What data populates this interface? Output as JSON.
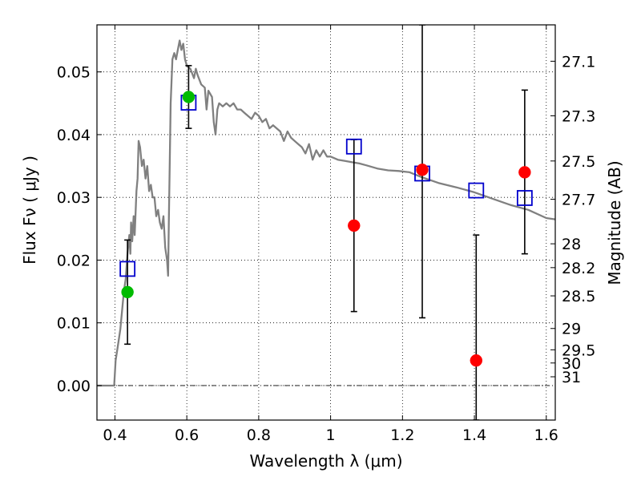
{
  "chart_data": {
    "type": "scatter",
    "xlabel": "Wavelength  λ (μm)",
    "ylabel": "Flux  Fν  ( μJy )",
    "y2label": "Magnitude (AB)",
    "xlim": [
      0.35,
      1.625
    ],
    "ylim": [
      -0.0055,
      0.0575
    ],
    "grid": true,
    "x_ticks": [
      0.4,
      0.6,
      0.8,
      1.0,
      1.2,
      1.4,
      1.6
    ],
    "x_tick_labels": [
      "0.4",
      "0.6",
      "0.8",
      "1",
      "1.2",
      "1.4",
      "1.6"
    ],
    "y_ticks": [
      0.0,
      0.01,
      0.02,
      0.03,
      0.04,
      0.05
    ],
    "y_tick_labels": [
      "0.00",
      "0.01",
      "0.02",
      "0.03",
      "0.04",
      "0.05"
    ],
    "mag_ticks": [
      {
        "label": "27.1",
        "flux": 0.0517
      },
      {
        "label": "27.3",
        "flux": 0.043
      },
      {
        "label": "27.5",
        "flux": 0.0358
      },
      {
        "label": "27.7",
        "flux": 0.0297
      },
      {
        "label": "28",
        "flux": 0.0226
      },
      {
        "label": "28.2",
        "flux": 0.0188
      },
      {
        "label": "28.5",
        "flux": 0.0143
      },
      {
        "label": "29",
        "flux": 0.0091
      },
      {
        "label": "29.5",
        "flux": 0.0057
      },
      {
        "label": "30",
        "flux": 0.0036
      },
      {
        "label": "31",
        "flux": 0.0014
      }
    ],
    "series": [
      {
        "kind": "model_sed",
        "color": "#808080",
        "points": [
          [
            0.35,
            0.0
          ],
          [
            0.39,
            0.0
          ],
          [
            0.398,
            0.0
          ],
          [
            0.402,
            0.004
          ],
          [
            0.41,
            0.007
          ],
          [
            0.415,
            0.009
          ],
          [
            0.42,
            0.012
          ],
          [
            0.425,
            0.015
          ],
          [
            0.43,
            0.017
          ],
          [
            0.435,
            0.021
          ],
          [
            0.44,
            0.024
          ],
          [
            0.443,
            0.021
          ],
          [
            0.445,
            0.026
          ],
          [
            0.448,
            0.023
          ],
          [
            0.452,
            0.027
          ],
          [
            0.455,
            0.024
          ],
          [
            0.46,
            0.031
          ],
          [
            0.463,
            0.033
          ],
          [
            0.466,
            0.039
          ],
          [
            0.47,
            0.038
          ],
          [
            0.475,
            0.035
          ],
          [
            0.48,
            0.036
          ],
          [
            0.485,
            0.033
          ],
          [
            0.49,
            0.035
          ],
          [
            0.495,
            0.031
          ],
          [
            0.5,
            0.032
          ],
          [
            0.505,
            0.03
          ],
          [
            0.51,
            0.03
          ],
          [
            0.515,
            0.027
          ],
          [
            0.52,
            0.028
          ],
          [
            0.525,
            0.026
          ],
          [
            0.53,
            0.025
          ],
          [
            0.535,
            0.027
          ],
          [
            0.54,
            0.022
          ],
          [
            0.545,
            0.02
          ],
          [
            0.548,
            0.0175
          ],
          [
            0.55,
            0.026
          ],
          [
            0.555,
            0.045
          ],
          [
            0.56,
            0.052
          ],
          [
            0.565,
            0.053
          ],
          [
            0.57,
            0.052
          ],
          [
            0.575,
            0.0535
          ],
          [
            0.58,
            0.055
          ],
          [
            0.585,
            0.0535
          ],
          [
            0.59,
            0.0545
          ],
          [
            0.595,
            0.052
          ],
          [
            0.6,
            0.051
          ],
          [
            0.61,
            0.0505
          ],
          [
            0.62,
            0.049
          ],
          [
            0.625,
            0.0505
          ],
          [
            0.63,
            0.0495
          ],
          [
            0.64,
            0.048
          ],
          [
            0.65,
            0.0475
          ],
          [
            0.655,
            0.044
          ],
          [
            0.66,
            0.047
          ],
          [
            0.67,
            0.046
          ],
          [
            0.675,
            0.042
          ],
          [
            0.68,
            0.04
          ],
          [
            0.685,
            0.044
          ],
          [
            0.69,
            0.045
          ],
          [
            0.7,
            0.0445
          ],
          [
            0.71,
            0.045
          ],
          [
            0.72,
            0.0445
          ],
          [
            0.73,
            0.045
          ],
          [
            0.74,
            0.044
          ],
          [
            0.75,
            0.044
          ],
          [
            0.76,
            0.0435
          ],
          [
            0.77,
            0.043
          ],
          [
            0.78,
            0.0425
          ],
          [
            0.79,
            0.0435
          ],
          [
            0.8,
            0.043
          ],
          [
            0.81,
            0.042
          ],
          [
            0.82,
            0.0425
          ],
          [
            0.83,
            0.041
          ],
          [
            0.84,
            0.0415
          ],
          [
            0.85,
            0.041
          ],
          [
            0.86,
            0.0405
          ],
          [
            0.87,
            0.039
          ],
          [
            0.88,
            0.0405
          ],
          [
            0.89,
            0.0395
          ],
          [
            0.9,
            0.039
          ],
          [
            0.91,
            0.0385
          ],
          [
            0.92,
            0.038
          ],
          [
            0.93,
            0.037
          ],
          [
            0.94,
            0.0385
          ],
          [
            0.95,
            0.036
          ],
          [
            0.96,
            0.0375
          ],
          [
            0.97,
            0.0365
          ],
          [
            0.98,
            0.0375
          ],
          [
            0.99,
            0.0365
          ],
          [
            1.0,
            0.0365
          ],
          [
            1.02,
            0.036
          ],
          [
            1.04,
            0.0358
          ],
          [
            1.06,
            0.0356
          ],
          [
            1.08,
            0.0354
          ],
          [
            1.1,
            0.0351
          ],
          [
            1.13,
            0.0346
          ],
          [
            1.16,
            0.0343
          ],
          [
            1.19,
            0.0342
          ],
          [
            1.22,
            0.034
          ],
          [
            1.25,
            0.0333
          ],
          [
            1.3,
            0.0323
          ],
          [
            1.35,
            0.0316
          ],
          [
            1.4,
            0.0308
          ],
          [
            1.45,
            0.0298
          ],
          [
            1.5,
            0.0288
          ],
          [
            1.55,
            0.028
          ],
          [
            1.6,
            0.0267
          ],
          [
            1.625,
            0.0265
          ]
        ]
      },
      {
        "kind": "model_photometry",
        "marker": "open-square",
        "color": "#0000cc",
        "points": [
          [
            0.435,
            0.0186
          ],
          [
            0.605,
            0.0451
          ],
          [
            1.065,
            0.0381
          ],
          [
            1.255,
            0.0338
          ],
          [
            1.405,
            0.0311
          ],
          [
            1.54,
            0.0299
          ]
        ]
      },
      {
        "kind": "observed_photometry",
        "marker": "filled-circle",
        "points": [
          {
            "x": 0.435,
            "y": 0.0149,
            "yerr_low": 0.0066,
            "yerr_high": 0.0232,
            "color": "#00bb00"
          },
          {
            "x": 0.605,
            "y": 0.046,
            "yerr_low": 0.041,
            "yerr_high": 0.051,
            "color": "#00bb00"
          },
          {
            "x": 1.065,
            "y": 0.0255,
            "yerr_low": 0.0118,
            "yerr_high": 0.0392,
            "color": "#ff0000"
          },
          {
            "x": 1.255,
            "y": 0.0344,
            "yerr_low": 0.0108,
            "yerr_high": 0.0575,
            "color": "#ff0000"
          },
          {
            "x": 1.405,
            "y": 0.004,
            "yerr_low": -0.0055,
            "yerr_high": 0.024,
            "color": "#ff0000"
          },
          {
            "x": 1.54,
            "y": 0.034,
            "yerr_low": 0.021,
            "yerr_high": 0.0471,
            "color": "#ff0000"
          }
        ]
      }
    ]
  }
}
